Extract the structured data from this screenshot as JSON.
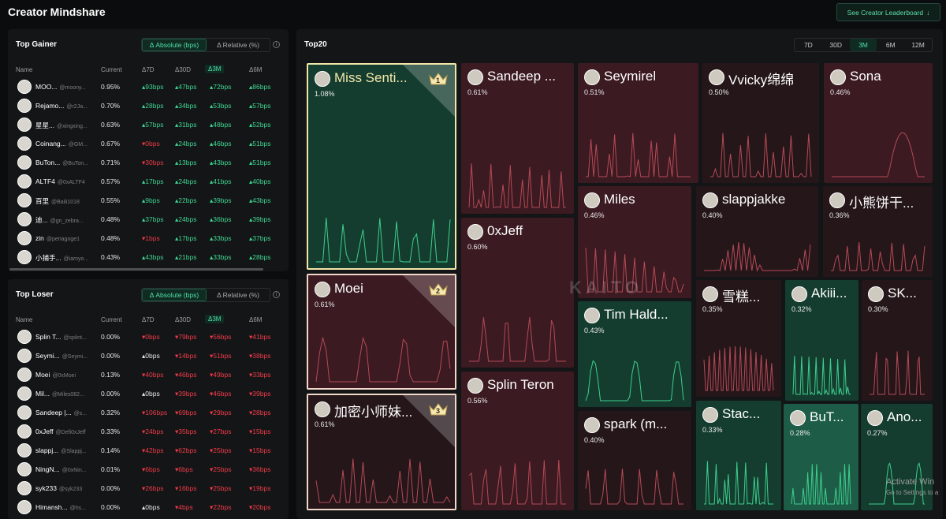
{
  "app_title": "Creator Mindshare",
  "see_leaderboard": "See Creator Leaderboard",
  "arrow_icon": "arrow-down-icon",
  "gainer": {
    "title": "Top Gainer",
    "toggle": [
      "Δ Absolute (bps)",
      "Δ Relative (%)"
    ],
    "columns": [
      "Name",
      "Current",
      "Δ7D",
      "Δ30D",
      "Δ3M",
      "Δ6M"
    ],
    "rows": [
      {
        "name": "MOO...",
        "handle": "@moony...",
        "current": "0.95%",
        "d7": "93bps",
        "d30": "47bps",
        "d3m": "72bps",
        "d6m": "86bps",
        "d7c": "g",
        "d30c": "g",
        "d3mc": "g",
        "d6mc": "g"
      },
      {
        "name": "Rejamo...",
        "handle": "@r2Ja...",
        "current": "0.70%",
        "d7": "28bps",
        "d30": "34bps",
        "d3m": "53bps",
        "d6m": "57bps",
        "d7c": "g",
        "d30c": "g",
        "d3mc": "g",
        "d6mc": "g"
      },
      {
        "name": "星星...",
        "handle": "@xingxing...",
        "current": "0.63%",
        "d7": "57bps",
        "d30": "31bps",
        "d3m": "48bps",
        "d6m": "52bps",
        "d7c": "g",
        "d30c": "g",
        "d3mc": "g",
        "d6mc": "g"
      },
      {
        "name": "Coinang...",
        "handle": "@GM...",
        "current": "0.67%",
        "d7": "0bps",
        "d30": "24bps",
        "d3m": "46bps",
        "d6m": "51bps",
        "d7c": "r",
        "d30c": "g",
        "d3mc": "g",
        "d6mc": "g"
      },
      {
        "name": "BuTon...",
        "handle": "@BuTon...",
        "current": "0.71%",
        "d7": "30bps",
        "d30": "13bps",
        "d3m": "43bps",
        "d6m": "51bps",
        "d7c": "r",
        "d30c": "g",
        "d3mc": "g",
        "d6mc": "g"
      },
      {
        "name": "ALTF4",
        "handle": "@0xALTF4",
        "current": "0.57%",
        "d7": "17bps",
        "d30": "24bps",
        "d3m": "41bps",
        "d6m": "40bps",
        "d7c": "g",
        "d30c": "g",
        "d3mc": "g",
        "d6mc": "g"
      },
      {
        "name": "百里",
        "handle": "@Baili1018",
        "current": "0.55%",
        "d7": "9bps",
        "d30": "22bps",
        "d3m": "39bps",
        "d6m": "43bps",
        "d7c": "g",
        "d30c": "g",
        "d3mc": "g",
        "d6mc": "g"
      },
      {
        "name": "迪...",
        "handle": "@gn_zebra...",
        "current": "0.48%",
        "d7": "37bps",
        "d30": "24bps",
        "d3m": "36bps",
        "d6m": "39bps",
        "d7c": "g",
        "d30c": "g",
        "d3mc": "g",
        "d6mc": "g"
      },
      {
        "name": "zin",
        "handle": "@periagoge1",
        "current": "0.48%",
        "d7": "1bps",
        "d30": "17bps",
        "d3m": "33bps",
        "d6m": "37bps",
        "d7c": "r",
        "d30c": "g",
        "d3mc": "g",
        "d6mc": "g"
      },
      {
        "name": "小捕手...",
        "handle": "@iamyo...",
        "current": "0.43%",
        "d7": "43bps",
        "d30": "21bps",
        "d3m": "33bps",
        "d6m": "28bps",
        "d7c": "g",
        "d30c": "g",
        "d3mc": "g",
        "d6mc": "g"
      }
    ]
  },
  "loser": {
    "title": "Top Loser",
    "toggle": [
      "Δ Absolute (bps)",
      "Δ Relative (%)"
    ],
    "columns": [
      "Name",
      "Current",
      "Δ7D",
      "Δ30D",
      "Δ3M",
      "Δ6M"
    ],
    "rows": [
      {
        "name": "Splin T...",
        "handle": "@splint...",
        "current": "0.00%",
        "d7": "0bps",
        "d30": "79bps",
        "d3m": "56bps",
        "d6m": "41bps",
        "d7c": "r",
        "d30c": "r",
        "d3mc": "r",
        "d6mc": "r"
      },
      {
        "name": "Seymi...",
        "handle": "@Seymi...",
        "current": "0.00%",
        "d7": "0bps",
        "d30": "14bps",
        "d3m": "51bps",
        "d6m": "38bps",
        "d7c": "w",
        "d30c": "r",
        "d3mc": "r",
        "d6mc": "r"
      },
      {
        "name": "Moei",
        "handle": "@0xMoei",
        "current": "0.13%",
        "d7": "40bps",
        "d30": "46bps",
        "d3m": "49bps",
        "d6m": "33bps",
        "d7c": "r",
        "d30c": "r",
        "d3mc": "r",
        "d6mc": "r"
      },
      {
        "name": "Mil...",
        "handle": "@Miles082...",
        "current": "0.00%",
        "d7": "0bps",
        "d30": "39bps",
        "d3m": "46bps",
        "d6m": "39bps",
        "d7c": "w",
        "d30c": "r",
        "d3mc": "r",
        "d6mc": "r"
      },
      {
        "name": "Sandeep |...",
        "handle": "@s...",
        "current": "0.32%",
        "d7": "106bps",
        "d30": "69bps",
        "d3m": "29bps",
        "d6m": "28bps",
        "d7c": "r",
        "d30c": "r",
        "d3mc": "r",
        "d6mc": "r"
      },
      {
        "name": "0xJeff",
        "handle": "@Defi0xJeff",
        "current": "0.33%",
        "d7": "24bps",
        "d30": "35bps",
        "d3m": "27bps",
        "d6m": "15bps",
        "d7c": "r",
        "d30c": "r",
        "d3mc": "r",
        "d6mc": "r"
      },
      {
        "name": "slappj...",
        "handle": "@Slappj...",
        "current": "0.14%",
        "d7": "42bps",
        "d30": "62bps",
        "d3m": "25bps",
        "d6m": "15bps",
        "d7c": "r",
        "d30c": "r",
        "d3mc": "r",
        "d6mc": "r"
      },
      {
        "name": "NingN...",
        "handle": "@0xNin...",
        "current": "0.01%",
        "d7": "6bps",
        "d30": "6bps",
        "d3m": "25bps",
        "d6m": "36bps",
        "d7c": "r",
        "d30c": "r",
        "d3mc": "r",
        "d6mc": "r"
      },
      {
        "name": "syk233",
        "handle": "@syk233",
        "current": "0.00%",
        "d7": "26bps",
        "d30": "16bps",
        "d3m": "25bps",
        "d6m": "19bps",
        "d7c": "r",
        "d30c": "r",
        "d3mc": "r",
        "d6mc": "r"
      },
      {
        "name": "Himansh...",
        "handle": "@hs...",
        "current": "0.00%",
        "d7": "0bps",
        "d30": "4bps",
        "d3m": "22bps",
        "d6m": "20bps",
        "d7c": "w",
        "d30c": "r",
        "d3mc": "r",
        "d6mc": "r"
      }
    ]
  },
  "top20": {
    "title": "Top20",
    "timeframes": [
      "7D",
      "30D",
      "3M",
      "6M",
      "12M"
    ],
    "active_timeframe": "3M",
    "colors": {
      "green": "#133d2f",
      "green_bright": "#1c5c46",
      "red": "#3b1a20",
      "red_dark": "#2a171b",
      "gold": "#f2e6a8"
    },
    "tiles": [
      {
        "name": "Miss Senti...",
        "pct": "1.08%",
        "rank": "1",
        "tone": "green"
      },
      {
        "name": "Moei",
        "pct": "0.61%",
        "rank": "2",
        "tone": "red"
      },
      {
        "name": "加密小师妹...",
        "pct": "0.61%",
        "rank": "3",
        "tone": "red_dark"
      },
      {
        "name": "Sandeep ...",
        "pct": "0.61%",
        "tone": "red"
      },
      {
        "name": "0xJeff",
        "pct": "0.60%",
        "tone": "red"
      },
      {
        "name": "Splin Teron",
        "pct": "0.56%",
        "tone": "red"
      },
      {
        "name": "Seymirel",
        "pct": "0.51%",
        "tone": "red"
      },
      {
        "name": "Vvicky绵绵",
        "pct": "0.50%",
        "tone": "red_dark"
      },
      {
        "name": "Sona",
        "pct": "0.46%",
        "tone": "red"
      },
      {
        "name": "Miles",
        "pct": "0.46%",
        "tone": "red"
      },
      {
        "name": "slappjakke",
        "pct": "0.40%",
        "tone": "red_dark"
      },
      {
        "name": "小熊饼干...",
        "pct": "0.36%",
        "tone": "red_dark"
      },
      {
        "name": "Tim Hald...",
        "pct": "0.43%",
        "tone": "green"
      },
      {
        "name": "雪糕...",
        "pct": "0.35%",
        "tone": "red_dark"
      },
      {
        "name": "Akiii...",
        "pct": "0.32%",
        "tone": "green"
      },
      {
        "name": "SK...",
        "pct": "0.30%",
        "tone": "red_dark"
      },
      {
        "name": "spark (m...",
        "pct": "0.40%",
        "tone": "red_dark"
      },
      {
        "name": "Stac...",
        "pct": "0.33%",
        "tone": "green"
      },
      {
        "name": "BuT...",
        "pct": "0.28%",
        "tone": "green_bright"
      },
      {
        "name": "Ano...",
        "pct": "0.27%",
        "tone": "green"
      }
    ]
  },
  "watermark": "KAITO",
  "activate": {
    "line1": "Activate Win",
    "line2": "Go to Settings to a"
  }
}
